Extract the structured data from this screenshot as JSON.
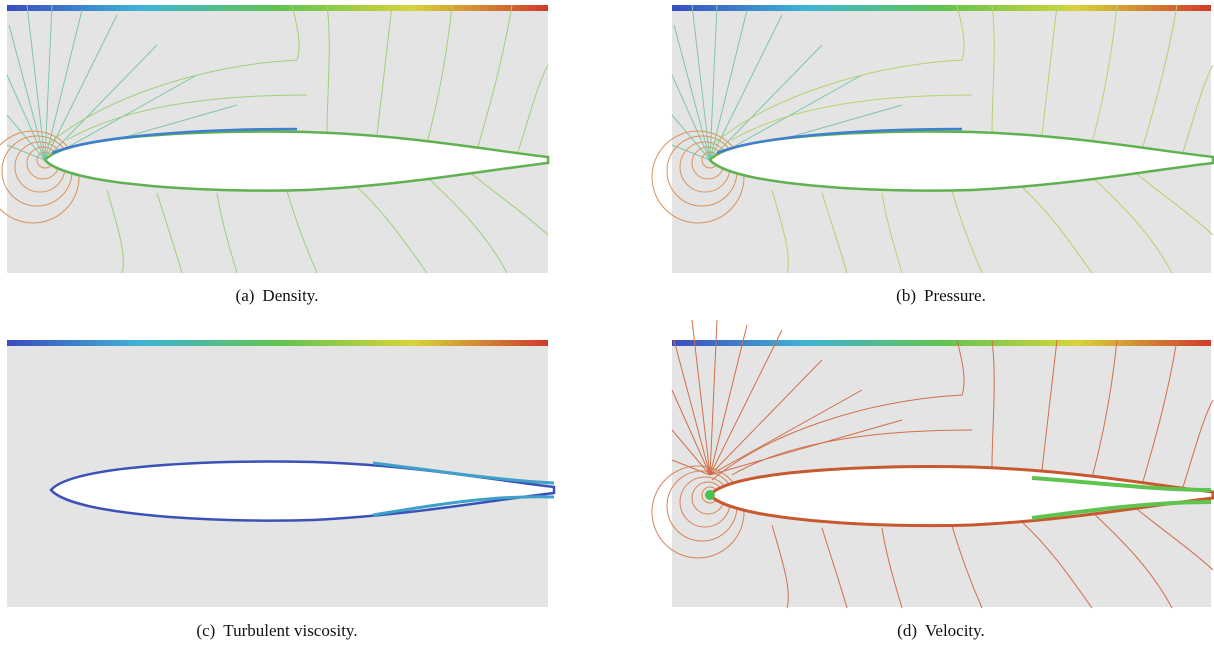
{
  "figure": {
    "panels": [
      {
        "label": "(a)",
        "caption": "Density."
      },
      {
        "label": "(b)",
        "caption": "Pressure."
      },
      {
        "label": "(c)",
        "caption": "Turbulent viscosity."
      },
      {
        "label": "(d)",
        "caption": "Velocity."
      }
    ]
  }
}
